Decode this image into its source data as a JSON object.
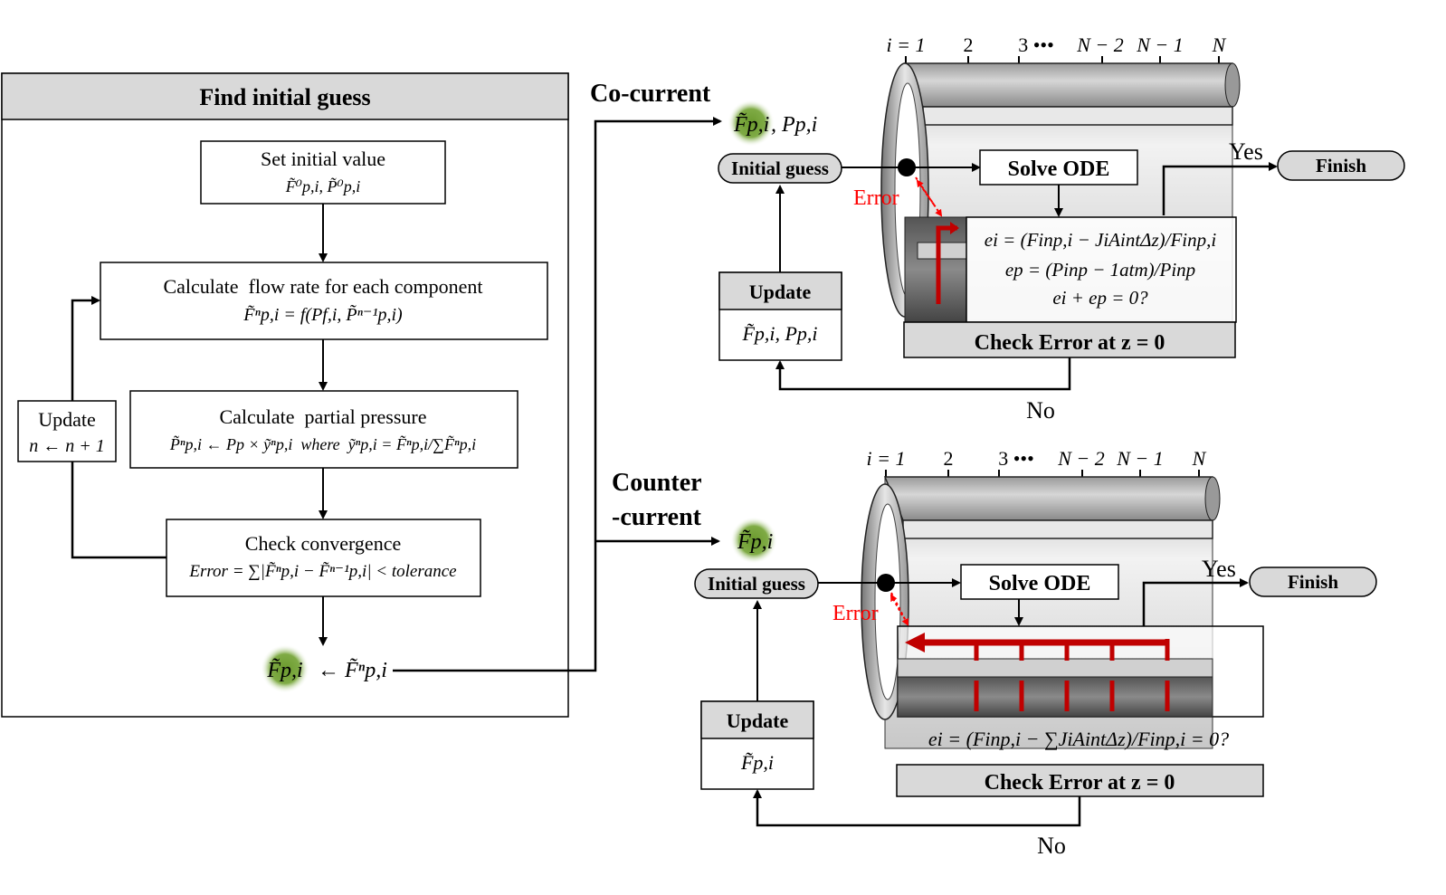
{
  "left_panel": {
    "title": "Find initial guess",
    "set_initial": {
      "title": "Set initial value",
      "formula": "F̃⁰p,i, P̃⁰p,i"
    },
    "calc_flow": {
      "title": "Calculate  flow rate for each component",
      "formula": "F̃ⁿp,i = f(Pf,i, P̃ⁿ⁻¹p,i)"
    },
    "calc_pressure": {
      "title": "Calculate  partial pressure",
      "formula": "P̃ⁿp,i ← Pp × ỹⁿp,i  where  ỹⁿp,i = F̃ⁿp,i/∑F̃ⁿp,i"
    },
    "check_conv": {
      "title": "Check convergence",
      "formula": "Error = ∑|F̃ⁿp,i − F̃ⁿ⁻¹p,i| < tolerance"
    },
    "update": {
      "title": "Update",
      "formula": "n ← n + 1"
    },
    "result": {
      "lhs": "F̃p,i",
      "rhs": "← F̃ⁿp,i"
    }
  },
  "co_current": {
    "label": "Co-current",
    "guess_vars": "F̃p,i, Pp,i",
    "guess_var_symbol": "F̃p,i",
    "guess_var_extra": ", Pp,i",
    "initial_guess": "Initial guess",
    "solve": "Solve ODE",
    "error": "Error",
    "yes": "Yes",
    "finish": "Finish",
    "no": "No",
    "update_title": "Update",
    "update_vars": "F̃p,i, Pp,i",
    "eq1": "ei = (Finp,i − JiAintΔz)/Finp,i",
    "eq2": "ep = (Pinp − 1atm)/Pinp",
    "eq3": "ei + ep = 0?",
    "check": "Check Error at z = 0",
    "axis": [
      "i = 1",
      "2",
      "3 •••",
      "N − 2",
      "N − 1",
      "N"
    ]
  },
  "counter_current": {
    "label_line1": "Counter",
    "label_line2": "-current",
    "guess_var_symbol": "F̃p,i",
    "initial_guess": "Initial guess",
    "solve": "Solve ODE",
    "error": "Error",
    "yes": "Yes",
    "finish": "Finish",
    "no": "No",
    "update_title": "Update",
    "update_vars": "F̃p,i",
    "eq1": "ei = (Finp,i − ∑JiAintΔz)/Finp,i = 0?",
    "check": "Check Error at z = 0",
    "axis": [
      "i = 1",
      "2",
      "3 •••",
      "N − 2",
      "N − 1",
      "N"
    ]
  },
  "colors": {
    "accent_red": "#c00000",
    "highlight_green": "#6b8e23",
    "box_gray": "#d9d9d9"
  }
}
